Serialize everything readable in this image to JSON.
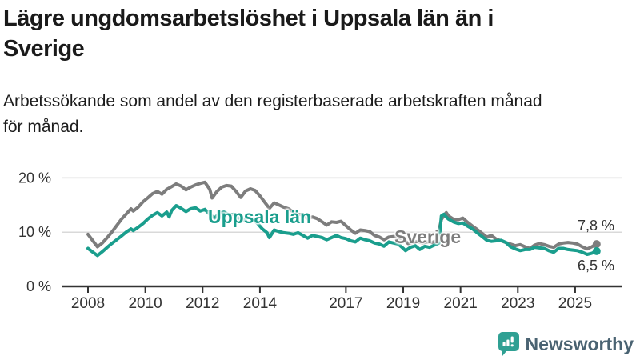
{
  "header": {
    "title": "Lägre ungdomsarbetslöshet i Uppsala län än i Sverige",
    "title_lines": [
      "Lägre ungdomsarbetslöshet i Uppsala län än i",
      "Sverige"
    ],
    "subtitle": "Arbetssökande som andel av den registerbaserade arbetskraften månad för månad.",
    "subtitle_lines": [
      "Arbetssökande som andel av den registerbaserade arbetskraften månad",
      "för månad."
    ]
  },
  "chart_data": {
    "type": "line",
    "title": "Lägre ungdomsarbetslöshet i Uppsala län än i Sverige",
    "subtitle": "Arbetssökande som andel av den registerbaserade arbetskraften månad för månad.",
    "xlabel": "",
    "ylabel": "",
    "x_ticks": [
      2008,
      2010,
      2012,
      2014,
      2017,
      2019,
      2021,
      2023,
      2025
    ],
    "xlim": [
      2007.1,
      2026.65
    ],
    "ylim": [
      0,
      22
    ],
    "y_ticks": [
      0,
      10,
      20
    ],
    "y_tick_labels": [
      "0 %",
      "10 %",
      "20 %"
    ],
    "grid": "horizontal",
    "legend": "inline-labels",
    "axis_color": "#333333",
    "grid_color": "#d9d9d9",
    "series": [
      {
        "name": "Sverige",
        "color": "#7d7d7d",
        "end_label": "7,8 %",
        "end_value": 7.8,
        "points": [
          [
            2008.0,
            9.6
          ],
          [
            2008.17,
            8.4
          ],
          [
            2008.33,
            7.3
          ],
          [
            2008.5,
            8.0
          ],
          [
            2008.67,
            9.0
          ],
          [
            2008.83,
            10.0
          ],
          [
            2009.0,
            11.2
          ],
          [
            2009.17,
            12.4
          ],
          [
            2009.33,
            13.3
          ],
          [
            2009.5,
            14.3
          ],
          [
            2009.58,
            13.9
          ],
          [
            2009.75,
            14.6
          ],
          [
            2009.92,
            15.6
          ],
          [
            2010.08,
            16.3
          ],
          [
            2010.25,
            17.1
          ],
          [
            2010.42,
            17.5
          ],
          [
            2010.58,
            17.0
          ],
          [
            2010.75,
            17.9
          ],
          [
            2010.92,
            18.4
          ],
          [
            2011.08,
            18.9
          ],
          [
            2011.25,
            18.5
          ],
          [
            2011.42,
            17.8
          ],
          [
            2011.58,
            18.3
          ],
          [
            2011.75,
            18.7
          ],
          [
            2011.92,
            19.0
          ],
          [
            2012.08,
            19.2
          ],
          [
            2012.25,
            17.9
          ],
          [
            2012.33,
            16.3
          ],
          [
            2012.5,
            17.5
          ],
          [
            2012.67,
            18.3
          ],
          [
            2012.83,
            18.6
          ],
          [
            2013.0,
            18.5
          ],
          [
            2013.17,
            17.5
          ],
          [
            2013.33,
            16.4
          ],
          [
            2013.5,
            17.6
          ],
          [
            2013.67,
            18.0
          ],
          [
            2013.83,
            17.7
          ],
          [
            2014.0,
            16.7
          ],
          [
            2014.17,
            15.5
          ],
          [
            2014.33,
            14.4
          ],
          [
            2014.5,
            15.4
          ],
          [
            2014.67,
            15.0
          ],
          [
            2014.83,
            14.6
          ],
          [
            2015.0,
            14.3
          ],
          [
            2015.17,
            13.7
          ],
          [
            2015.33,
            13.3
          ],
          [
            2015.5,
            13.2
          ],
          [
            2015.67,
            12.5
          ],
          [
            2015.83,
            12.8
          ],
          [
            2016.0,
            12.5
          ],
          [
            2016.17,
            11.9
          ],
          [
            2016.33,
            11.3
          ],
          [
            2016.5,
            11.9
          ],
          [
            2016.67,
            11.8
          ],
          [
            2016.83,
            12.0
          ],
          [
            2017.0,
            11.2
          ],
          [
            2017.17,
            10.4
          ],
          [
            2017.33,
            9.8
          ],
          [
            2017.5,
            10.4
          ],
          [
            2017.67,
            10.3
          ],
          [
            2017.83,
            10.1
          ],
          [
            2018.0,
            9.4
          ],
          [
            2018.17,
            9.1
          ],
          [
            2018.33,
            8.6
          ],
          [
            2018.5,
            9.1
          ],
          [
            2018.67,
            9.2
          ],
          [
            2018.83,
            9.0
          ],
          [
            2019.0,
            8.7
          ],
          [
            2019.17,
            7.9
          ],
          [
            2019.33,
            8.1
          ],
          [
            2019.5,
            8.3
          ],
          [
            2019.67,
            8.0
          ],
          [
            2019.83,
            8.2
          ],
          [
            2020.0,
            8.1
          ],
          [
            2020.17,
            8.4
          ],
          [
            2020.33,
            12.3
          ],
          [
            2020.42,
            13.1
          ],
          [
            2020.5,
            13.6
          ],
          [
            2020.58,
            13.0
          ],
          [
            2020.75,
            12.4
          ],
          [
            2020.92,
            12.3
          ],
          [
            2021.08,
            12.6
          ],
          [
            2021.25,
            11.8
          ],
          [
            2021.42,
            11.1
          ],
          [
            2021.58,
            10.5
          ],
          [
            2021.75,
            9.8
          ],
          [
            2021.92,
            9.1
          ],
          [
            2022.08,
            9.4
          ],
          [
            2022.25,
            8.7
          ],
          [
            2022.42,
            8.4
          ],
          [
            2022.58,
            8.1
          ],
          [
            2022.75,
            7.8
          ],
          [
            2022.92,
            7.5
          ],
          [
            2023.08,
            7.7
          ],
          [
            2023.25,
            7.3
          ],
          [
            2023.42,
            7.0
          ],
          [
            2023.58,
            7.6
          ],
          [
            2023.75,
            7.9
          ],
          [
            2023.92,
            7.7
          ],
          [
            2024.08,
            7.4
          ],
          [
            2024.25,
            7.2
          ],
          [
            2024.42,
            7.8
          ],
          [
            2024.58,
            8.0
          ],
          [
            2024.75,
            8.1
          ],
          [
            2024.92,
            8.0
          ],
          [
            2025.08,
            7.8
          ],
          [
            2025.25,
            7.3
          ],
          [
            2025.42,
            6.9
          ],
          [
            2025.58,
            7.3
          ],
          [
            2025.75,
            7.8
          ]
        ]
      },
      {
        "name": "Uppsala län",
        "color": "#1a9e8d",
        "end_label": "6,5 %",
        "end_value": 6.5,
        "points": [
          [
            2008.0,
            7.0
          ],
          [
            2008.17,
            6.3
          ],
          [
            2008.33,
            5.7
          ],
          [
            2008.5,
            6.4
          ],
          [
            2008.67,
            7.2
          ],
          [
            2008.83,
            7.9
          ],
          [
            2009.0,
            8.6
          ],
          [
            2009.17,
            9.3
          ],
          [
            2009.33,
            10.0
          ],
          [
            2009.5,
            10.6
          ],
          [
            2009.58,
            10.3
          ],
          [
            2009.75,
            10.9
          ],
          [
            2009.92,
            11.6
          ],
          [
            2010.08,
            12.4
          ],
          [
            2010.25,
            13.1
          ],
          [
            2010.42,
            13.6
          ],
          [
            2010.58,
            13.0
          ],
          [
            2010.75,
            13.7
          ],
          [
            2010.83,
            12.8
          ],
          [
            2010.92,
            14.0
          ],
          [
            2011.08,
            14.9
          ],
          [
            2011.25,
            14.4
          ],
          [
            2011.42,
            13.8
          ],
          [
            2011.58,
            14.3
          ],
          [
            2011.75,
            14.5
          ],
          [
            2011.92,
            13.9
          ],
          [
            2012.08,
            14.2
          ],
          [
            2012.25,
            13.3
          ],
          [
            2012.42,
            12.6
          ],
          [
            2012.58,
            13.5
          ],
          [
            2012.75,
            13.7
          ],
          [
            2012.92,
            13.2
          ],
          [
            2013.08,
            13.3
          ],
          [
            2013.25,
            12.6
          ],
          [
            2013.42,
            12.1
          ],
          [
            2013.58,
            12.7
          ],
          [
            2013.75,
            12.4
          ],
          [
            2013.92,
            11.6
          ],
          [
            2014.08,
            10.6
          ],
          [
            2014.25,
            9.9
          ],
          [
            2014.33,
            9.0
          ],
          [
            2014.5,
            10.4
          ],
          [
            2014.67,
            10.1
          ],
          [
            2014.83,
            9.9
          ],
          [
            2015.0,
            9.8
          ],
          [
            2015.17,
            9.6
          ],
          [
            2015.33,
            9.9
          ],
          [
            2015.5,
            9.4
          ],
          [
            2015.67,
            8.9
          ],
          [
            2015.83,
            9.4
          ],
          [
            2016.0,
            9.2
          ],
          [
            2016.17,
            9.0
          ],
          [
            2016.33,
            8.6
          ],
          [
            2016.5,
            9.0
          ],
          [
            2016.67,
            9.4
          ],
          [
            2016.83,
            9.0
          ],
          [
            2017.0,
            8.8
          ],
          [
            2017.17,
            8.4
          ],
          [
            2017.33,
            8.2
          ],
          [
            2017.5,
            8.9
          ],
          [
            2017.67,
            8.6
          ],
          [
            2017.83,
            8.4
          ],
          [
            2018.0,
            8.0
          ],
          [
            2018.17,
            7.8
          ],
          [
            2018.33,
            7.4
          ],
          [
            2018.5,
            8.2
          ],
          [
            2018.67,
            8.0
          ],
          [
            2018.83,
            7.8
          ],
          [
            2019.0,
            7.0
          ],
          [
            2019.08,
            6.6
          ],
          [
            2019.25,
            7.2
          ],
          [
            2019.42,
            7.5
          ],
          [
            2019.58,
            6.8
          ],
          [
            2019.75,
            7.4
          ],
          [
            2019.92,
            7.2
          ],
          [
            2020.08,
            7.6
          ],
          [
            2020.25,
            8.0
          ],
          [
            2020.33,
            13.0
          ],
          [
            2020.42,
            13.3
          ],
          [
            2020.5,
            12.8
          ],
          [
            2020.58,
            12.4
          ],
          [
            2020.75,
            11.9
          ],
          [
            2020.92,
            11.6
          ],
          [
            2021.08,
            11.7
          ],
          [
            2021.25,
            11.1
          ],
          [
            2021.42,
            10.6
          ],
          [
            2021.58,
            9.9
          ],
          [
            2021.75,
            9.2
          ],
          [
            2021.92,
            8.5
          ],
          [
            2022.08,
            8.3
          ],
          [
            2022.25,
            8.4
          ],
          [
            2022.42,
            8.5
          ],
          [
            2022.58,
            8.1
          ],
          [
            2022.75,
            7.3
          ],
          [
            2022.92,
            6.9
          ],
          [
            2023.08,
            6.6
          ],
          [
            2023.25,
            6.8
          ],
          [
            2023.42,
            6.8
          ],
          [
            2023.58,
            7.2
          ],
          [
            2023.75,
            7.1
          ],
          [
            2023.92,
            7.0
          ],
          [
            2024.08,
            6.6
          ],
          [
            2024.25,
            6.3
          ],
          [
            2024.42,
            7.0
          ],
          [
            2024.58,
            7.0
          ],
          [
            2024.75,
            6.8
          ],
          [
            2024.92,
            6.7
          ],
          [
            2025.08,
            6.6
          ],
          [
            2025.25,
            6.3
          ],
          [
            2025.42,
            5.9
          ],
          [
            2025.58,
            6.1
          ],
          [
            2025.75,
            6.5
          ]
        ]
      }
    ]
  },
  "branding": {
    "name": "Newsworthy",
    "logo_color": "#2fa093",
    "text_color": "#4a6372"
  }
}
